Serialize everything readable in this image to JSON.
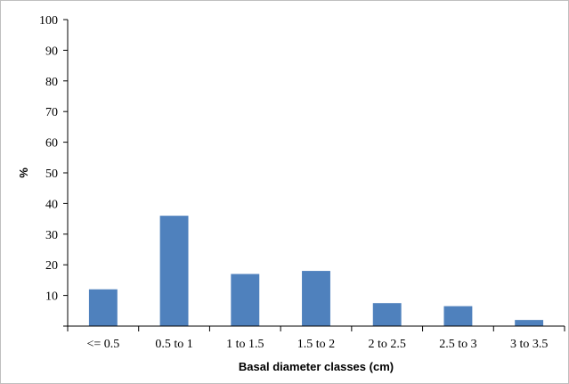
{
  "chart_data": {
    "type": "bar",
    "title": "",
    "xlabel": "Basal diameter classes (cm)",
    "ylabel": "%",
    "categories": [
      "<= 0.5",
      "0.5 to 1",
      "1 to 1.5",
      "1.5 to 2",
      "2 to 2.5",
      "2.5 to 3",
      "3 to 3.5"
    ],
    "values": [
      12,
      36,
      17,
      18,
      7.5,
      6.5,
      2
    ],
    "ylim": [
      0,
      100
    ],
    "yticks": [
      10,
      20,
      30,
      40,
      50,
      60,
      70,
      80,
      90,
      100
    ],
    "grid": false,
    "legend": "none",
    "bar_color": "#4f81bd"
  }
}
